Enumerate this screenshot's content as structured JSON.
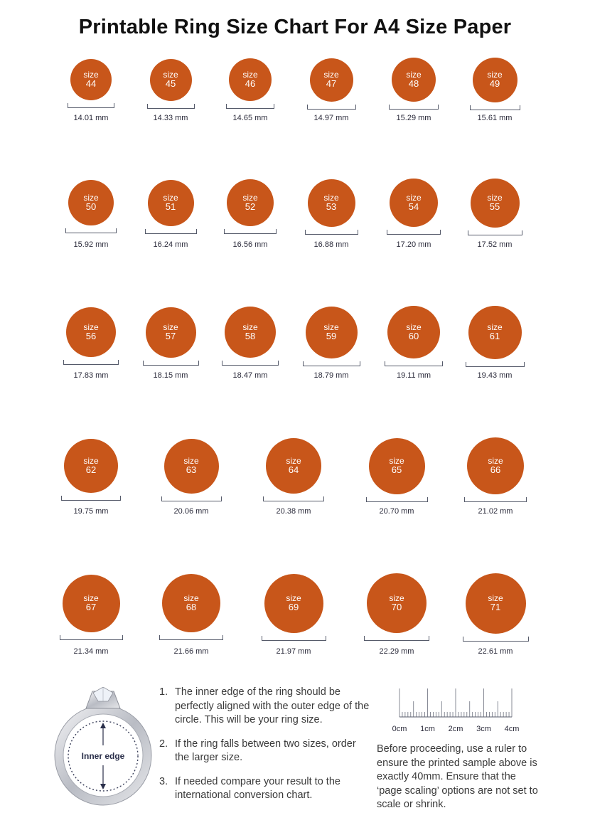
{
  "title": "Printable Ring Size Chart For A4 Size Paper",
  "size_word": "size",
  "colors": {
    "circle": "#c8561a",
    "text": "#2a2a4a"
  },
  "rows": [
    [
      {
        "size": "44",
        "mm": "14.01 mm"
      },
      {
        "size": "45",
        "mm": "14.33 mm"
      },
      {
        "size": "46",
        "mm": "14.65 mm"
      },
      {
        "size": "47",
        "mm": "14.97 mm"
      },
      {
        "size": "48",
        "mm": "15.29 mm"
      },
      {
        "size": "49",
        "mm": "15.61 mm"
      }
    ],
    [
      {
        "size": "50",
        "mm": "15.92 mm"
      },
      {
        "size": "51",
        "mm": "16.24 mm"
      },
      {
        "size": "52",
        "mm": "16.56 mm"
      },
      {
        "size": "53",
        "mm": "16.88 mm"
      },
      {
        "size": "54",
        "mm": "17.20 mm"
      },
      {
        "size": "55",
        "mm": "17.52 mm"
      }
    ],
    [
      {
        "size": "56",
        "mm": "17.83 mm"
      },
      {
        "size": "57",
        "mm": "18.15 mm"
      },
      {
        "size": "58",
        "mm": "18.47 mm"
      },
      {
        "size": "59",
        "mm": "18.79 mm"
      },
      {
        "size": "60",
        "mm": "19.11 mm"
      },
      {
        "size": "61",
        "mm": "19.43 mm"
      }
    ],
    [
      {
        "size": "62",
        "mm": "19.75 mm"
      },
      {
        "size": "63",
        "mm": "20.06 mm"
      },
      {
        "size": "64",
        "mm": "20.38 mm"
      },
      {
        "size": "65",
        "mm": "20.70 mm"
      },
      {
        "size": "66",
        "mm": "21.02 mm"
      }
    ],
    [
      {
        "size": "67",
        "mm": "21.34 mm"
      },
      {
        "size": "68",
        "mm": "21.66 mm"
      },
      {
        "size": "69",
        "mm": "21.97 mm"
      },
      {
        "size": "70",
        "mm": "22.29 mm"
      },
      {
        "size": "71",
        "mm": "22.61 mm"
      }
    ]
  ],
  "ring_label": "Inner edge",
  "instructions": [
    {
      "num": "1.",
      "text": "The inner edge of the ring should be perfectly aligned with the outer edge of the circle. This will be your ring size."
    },
    {
      "num": "2.",
      "text": "If the ring falls between two sizes, order the larger size."
    },
    {
      "num": "3.",
      "text": "If needed compare your result to the international conversion chart."
    }
  ],
  "ruler": {
    "labels": [
      "0cm",
      "1cm",
      "2cm",
      "3cm",
      "4cm"
    ],
    "note": "Before proceeding, use a ruler to ensure the printed sample above is exactly 40mm. Ensure that the ‘page scaling’ options are not set to scale or shrink."
  }
}
